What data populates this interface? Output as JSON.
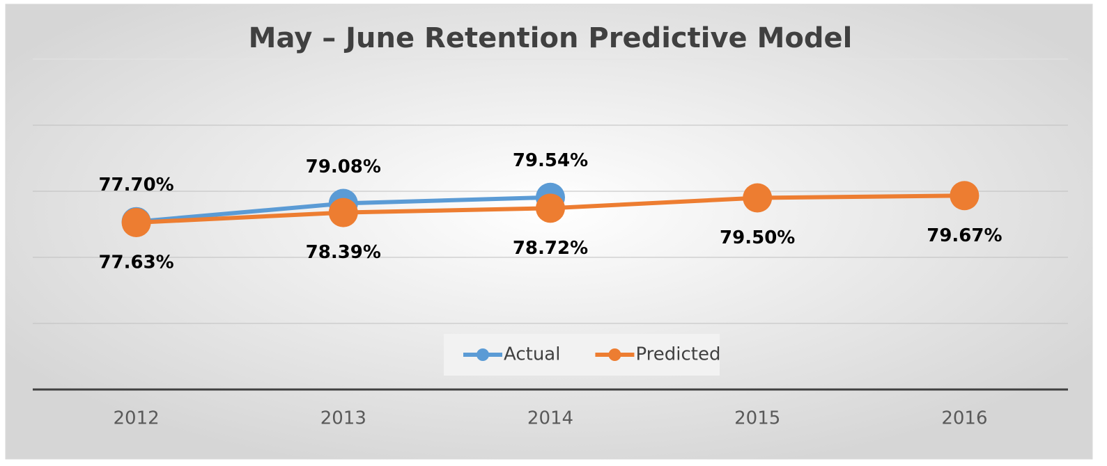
{
  "chart_data": {
    "type": "line",
    "title": "May – June Retention Predictive Model",
    "categories": [
      "2012",
      "2013",
      "2014",
      "2015",
      "2016"
    ],
    "series": [
      {
        "name": "Actual",
        "color": "#5b9bd5",
        "values": [
          77.7,
          79.08,
          79.54,
          null,
          null
        ],
        "value_labels": [
          "77.70%",
          "79.08%",
          "79.54%",
          null,
          null
        ]
      },
      {
        "name": "Predicted",
        "color": "#ed7d31",
        "values": [
          77.63,
          78.39,
          78.72,
          79.5,
          79.67
        ],
        "value_labels": [
          "77.63%",
          "78.39%",
          "78.72%",
          "79.50%",
          "79.67%"
        ]
      }
    ],
    "ylim": [
      65,
      90
    ],
    "yticks": [
      65,
      70,
      75,
      80,
      85,
      90
    ],
    "grid": true,
    "legend": "bottom"
  }
}
